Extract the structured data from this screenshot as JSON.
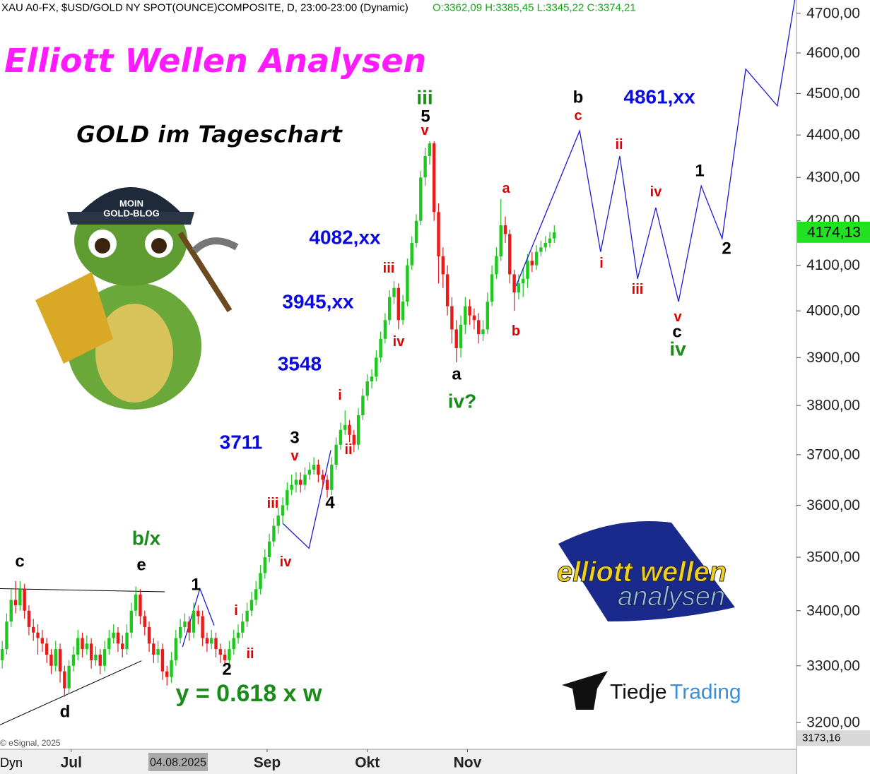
{
  "chart_data": {
    "type": "candlestick",
    "title": "XAU A0-FX, $USD/GOLD NY SPOT(OUNCE)COMPOSITE, D, 23:00-23:00 (Dynamic)",
    "subtitle": "O:3362,09 H:3385,45 L:3345,22 C:3374,21",
    "open": [
      3310,
      3330,
      3380,
      3420,
      3410,
      3440,
      3400,
      3370,
      3360,
      3350,
      3340,
      3320,
      3300,
      3330,
      3290,
      3260,
      3300,
      3320,
      3350,
      3330,
      3340,
      3310,
      3320,
      3300,
      3330,
      3350,
      3360,
      3340,
      3330,
      3360,
      3400,
      3430,
      3390,
      3370,
      3340,
      3320,
      3330,
      3290,
      3280,
      3310,
      3350,
      3370,
      3380,
      3360,
      3400,
      3390,
      3350,
      3340,
      3350,
      3330,
      3320,
      3310,
      3330,
      3350,
      3360,
      3380,
      3400,
      3420,
      3440,
      3470,
      3500,
      3530,
      3560,
      3580,
      3600,
      3630,
      3640,
      3650,
      3640,
      3660,
      3670,
      3680,
      3660,
      3650,
      3630,
      3680,
      3720,
      3750,
      3760,
      3740,
      3720,
      3780,
      3820,
      3850,
      3860,
      3900,
      3940,
      3980,
      4030,
      4050,
      3980,
      4020,
      4100,
      4150,
      4200,
      4300,
      4350,
      4380,
      4220,
      4120,
      4080,
      4010,
      3960,
      3920,
      3970,
      4010,
      3990,
      3980,
      3950,
      3960,
      4020,
      4080,
      4120,
      4190,
      4170,
      4080,
      4040,
      4060,
      4070,
      4110,
      4100,
      4130,
      4140,
      4150,
      4160
    ],
    "high": [
      3345,
      3395,
      3440,
      3455,
      3455,
      3450,
      3410,
      3385,
      3375,
      3365,
      3350,
      3330,
      3345,
      3340,
      3300,
      3310,
      3335,
      3365,
      3360,
      3355,
      3350,
      3335,
      3330,
      3345,
      3365,
      3375,
      3370,
      3355,
      3375,
      3415,
      3445,
      3440,
      3400,
      3380,
      3350,
      3345,
      3340,
      3300,
      3325,
      3365,
      3385,
      3395,
      3390,
      3415,
      3410,
      3400,
      3360,
      3365,
      3360,
      3340,
      3330,
      3345,
      3365,
      3375,
      3395,
      3415,
      3435,
      3455,
      3485,
      3515,
      3545,
      3575,
      3595,
      3615,
      3645,
      3660,
      3665,
      3665,
      3675,
      3685,
      3695,
      3690,
      3670,
      3660,
      3695,
      3735,
      3765,
      3790,
      3770,
      3750,
      3795,
      3835,
      3865,
      3875,
      3915,
      3955,
      3995,
      4045,
      4065,
      4060,
      4035,
      4115,
      4165,
      4215,
      4315,
      4370,
      4385,
      4385,
      4240,
      4140,
      4100,
      4030,
      3980,
      3990,
      4030,
      4025,
      4005,
      3995,
      3980,
      4040,
      4100,
      4140,
      4250,
      4210,
      4180,
      4090,
      4080,
      4095,
      4125,
      4130,
      4145,
      4155,
      4165,
      4175,
      4190
    ],
    "low": [
      3295,
      3320,
      3370,
      3395,
      3400,
      3385,
      3355,
      3345,
      3320,
      3325,
      3305,
      3285,
      3290,
      3270,
      3245,
      3250,
      3290,
      3310,
      3315,
      3320,
      3295,
      3300,
      3285,
      3290,
      3320,
      3340,
      3325,
      3315,
      3320,
      3350,
      3390,
      3375,
      3355,
      3325,
      3305,
      3305,
      3275,
      3265,
      3270,
      3300,
      3340,
      3360,
      3345,
      3350,
      3375,
      3335,
      3325,
      3330,
      3315,
      3305,
      3300,
      3300,
      3320,
      3340,
      3350,
      3370,
      3390,
      3410,
      3430,
      3460,
      3490,
      3520,
      3545,
      3565,
      3590,
      3620,
      3625,
      3625,
      3630,
      3650,
      3660,
      3645,
      3635,
      3615,
      3620,
      3670,
      3710,
      3740,
      3725,
      3705,
      3710,
      3770,
      3810,
      3835,
      3850,
      3890,
      3930,
      3970,
      4015,
      3960,
      3970,
      4010,
      4090,
      4140,
      4190,
      4280,
      4330,
      4200,
      4060,
      4050,
      3990,
      3930,
      3890,
      3900,
      3950,
      3970,
      3960,
      3930,
      3935,
      3950,
      4010,
      4070,
      4110,
      4150,
      4060,
      4000,
      4025,
      4030,
      4050,
      4085,
      4090,
      4120,
      4130,
      4140,
      4150
    ],
    "close": [
      3330,
      3380,
      3420,
      3410,
      3440,
      3400,
      3370,
      3360,
      3350,
      3340,
      3320,
      3300,
      3330,
      3290,
      3260,
      3300,
      3320,
      3350,
      3330,
      3340,
      3310,
      3320,
      3300,
      3330,
      3350,
      3360,
      3340,
      3330,
      3360,
      3400,
      3430,
      3390,
      3370,
      3340,
      3320,
      3330,
      3290,
      3280,
      3310,
      3350,
      3370,
      3380,
      3360,
      3400,
      3390,
      3350,
      3340,
      3350,
      3330,
      3320,
      3310,
      3330,
      3350,
      3360,
      3380,
      3400,
      3420,
      3440,
      3470,
      3500,
      3530,
      3560,
      3580,
      3600,
      3630,
      3640,
      3650,
      3640,
      3660,
      3670,
      3680,
      3660,
      3650,
      3630,
      3680,
      3720,
      3750,
      3760,
      3740,
      3720,
      3780,
      3820,
      3850,
      3860,
      3900,
      3940,
      3980,
      4030,
      4050,
      3980,
      4020,
      4100,
      4150,
      4200,
      4300,
      4350,
      4380,
      4220,
      4120,
      4080,
      4010,
      3960,
      3920,
      3970,
      4010,
      3990,
      3980,
      3950,
      3960,
      4020,
      4080,
      4120,
      4190,
      4170,
      4080,
      4040,
      4060,
      4070,
      4110,
      4100,
      4130,
      4140,
      4150,
      4160,
      4174
    ],
    "colors": {
      "up": "#1ec81e",
      "down": "#e81a1a"
    },
    "xlim": [
      -0.5,
      178.4
    ],
    "xticks": [
      {
        "value": 15.5,
        "label": "Jul"
      },
      {
        "value": 59.5,
        "label": "Sep"
      },
      {
        "value": 82,
        "label": "Okt"
      },
      {
        "value": 104.5,
        "label": "Nov"
      }
    ],
    "cursor_date": {
      "value": 39.5,
      "label": "04.08.2025"
    },
    "log_scale": true,
    "ylim": [
      3154,
      4734
    ],
    "yticks": [
      {
        "value": 3200,
        "label": "3200,00"
      },
      {
        "value": 3300,
        "label": "3300,00"
      },
      {
        "value": 3400,
        "label": "3400,00"
      },
      {
        "value": 3500,
        "label": "3500,00"
      },
      {
        "value": 3600,
        "label": "3600,00"
      },
      {
        "value": 3700,
        "label": "3700,00"
      },
      {
        "value": 3800,
        "label": "3800,00"
      },
      {
        "value": 3900,
        "label": "3900,00"
      },
      {
        "value": 4000,
        "label": "4000,00"
      },
      {
        "value": 4100,
        "label": "4100,00"
      },
      {
        "value": 4200,
        "label": "4200,00"
      },
      {
        "value": 4300,
        "label": "4300,00"
      },
      {
        "value": 4400,
        "label": "4400,00"
      },
      {
        "value": 4500,
        "label": "4500,00"
      },
      {
        "value": 4600,
        "label": "4600,00"
      },
      {
        "value": 4700,
        "label": "4700,00"
      }
    ],
    "projection": {
      "color": "#1a1ad6",
      "x": [
        115.4,
        129.7,
        134.4,
        138.7,
        142.7,
        146.8,
        151.9,
        157,
        161.7,
        167,
        174.1,
        178.1
      ],
      "values": [
        4054,
        4410,
        4130,
        4350,
        4070,
        4230,
        4020,
        4280,
        4160,
        4560,
        4470,
        4740
      ]
    },
    "wave_lines": [
      {
        "color": "#1a1ad6",
        "x": [
          40.5,
          44.4,
          47.6
        ],
        "values": [
          3334,
          3441,
          3373
        ]
      },
      {
        "color": "#1a1ad6",
        "x": [
          63,
          68.9,
          73.8
        ],
        "values": [
          3565,
          3517,
          3709
        ]
      }
    ],
    "trendlines": [
      {
        "color": "#000000",
        "x": [
          -0.5,
          36.5
        ],
        "values": [
          3441,
          3435
        ]
      },
      {
        "color": "#000000",
        "x": [
          -0.5,
          31.3
        ],
        "values": [
          3196,
          3309
        ]
      }
    ],
    "last_price": {
      "value": 4174.13,
      "label": "4174,13"
    },
    "cursor_price": {
      "value": 3173.16,
      "label": "3173,16"
    },
    "headline": "Elliott Wellen Analysen",
    "subheadline": "GOLD im Tageschart",
    "annotations": [
      {
        "text": "4082,xx",
        "color": "#0a0ae0"
      },
      {
        "text": "3945,xx",
        "color": "#0a0ae0"
      },
      {
        "text": "3548",
        "color": "#0a0ae0"
      },
      {
        "text": "3711",
        "color": "#0a0ae0"
      },
      {
        "text": "4861,xx",
        "color": "#0a0ae0"
      },
      {
        "text": "c",
        "color": "#000000"
      },
      {
        "text": "e",
        "color": "#000000"
      },
      {
        "text": "d",
        "color": "#000000"
      },
      {
        "text": "1",
        "color": "#000000"
      },
      {
        "text": "2",
        "color": "#000000"
      },
      {
        "text": "3",
        "color": "#000000"
      },
      {
        "text": "4",
        "color": "#000000"
      },
      {
        "text": "5",
        "color": "#000000"
      },
      {
        "text": "a",
        "color": "#000000"
      },
      {
        "text": "b",
        "color": "#000000"
      },
      {
        "text": "c",
        "color": "#000000"
      },
      {
        "text": "1",
        "color": "#000000"
      },
      {
        "text": "2",
        "color": "#000000"
      },
      {
        "text": "b/x",
        "color": "#1a8c1a"
      },
      {
        "text": "iii",
        "color": "#1a8c1a"
      },
      {
        "text": "iv?",
        "color": "#1a8c1a"
      },
      {
        "text": "iv",
        "color": "#1a8c1a"
      },
      {
        "text": "y = 0.618 x w",
        "color": "#1a8c1a"
      },
      {
        "text": "i",
        "color": "#e00000"
      },
      {
        "text": "ii",
        "color": "#e00000"
      },
      {
        "text": "iii",
        "color": "#e00000"
      },
      {
        "text": "iv",
        "color": "#e00000"
      },
      {
        "text": "v",
        "color": "#e00000"
      },
      {
        "text": "i",
        "color": "#e00000"
      },
      {
        "text": "ii",
        "color": "#e00000"
      },
      {
        "text": "iii",
        "color": "#e00000"
      },
      {
        "text": "iv",
        "color": "#e00000"
      },
      {
        "text": "v",
        "color": "#e00000"
      },
      {
        "text": "a",
        "color": "#e00000"
      },
      {
        "text": "b",
        "color": "#e00000"
      },
      {
        "text": "c",
        "color": "#e00000"
      },
      {
        "text": "i",
        "color": "#e00000"
      },
      {
        "text": "ii",
        "color": "#e00000"
      },
      {
        "text": "iii",
        "color": "#e00000"
      },
      {
        "text": "iv",
        "color": "#e00000"
      },
      {
        "text": "v",
        "color": "#e00000"
      }
    ],
    "mascot_cap": [
      "MOIN",
      "GOLD-BLOG"
    ],
    "logo_ewa": [
      "elliott wellen",
      "analysen"
    ],
    "logo_tiedje": [
      "Tiedje",
      "Trading"
    ],
    "copyright": "© eSignal, 2025",
    "mode": "Dyn"
  }
}
